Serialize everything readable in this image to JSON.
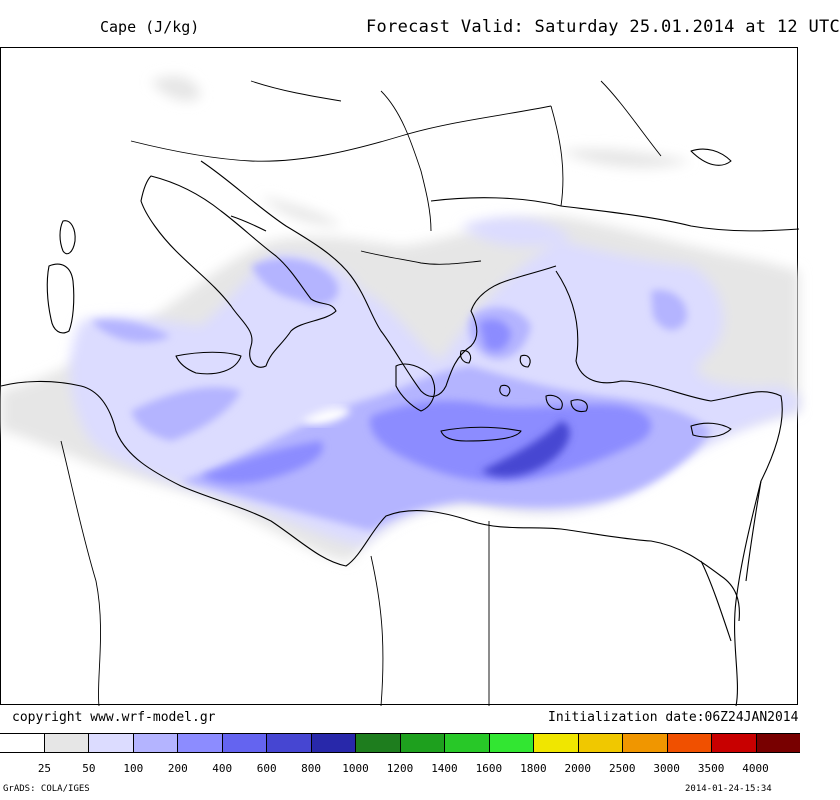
{
  "header": {
    "variable": "Cape (J/kg)",
    "valid": "Forecast Valid:  Saturday 25.01.2014 at 12 UTC"
  },
  "footer": {
    "copyright": "copyright www.wrf-model.gr",
    "initialization": "Initialization date:06Z24JAN2014",
    "software": "GrADS: COLA/IGES",
    "timestamp": "2014-01-24-15:34"
  },
  "legend": {
    "colors": [
      "#ffffff",
      "#e6e6e6",
      "#dcdcff",
      "#b4b4ff",
      "#8c8cff",
      "#6464f0",
      "#4646d2",
      "#2828aa",
      "#1e7d1e",
      "#1ea01e",
      "#28c828",
      "#32e632",
      "#f0e600",
      "#f0c800",
      "#f09600",
      "#f05000",
      "#c80000",
      "#780000"
    ],
    "ticks": [
      "25",
      "50",
      "100",
      "200",
      "400",
      "600",
      "800",
      "1000",
      "1200",
      "1400",
      "1600",
      "1800",
      "2000",
      "2500",
      "3000",
      "3500",
      "4000"
    ]
  },
  "map": {
    "region": "Central and Eastern Mediterranean"
  }
}
